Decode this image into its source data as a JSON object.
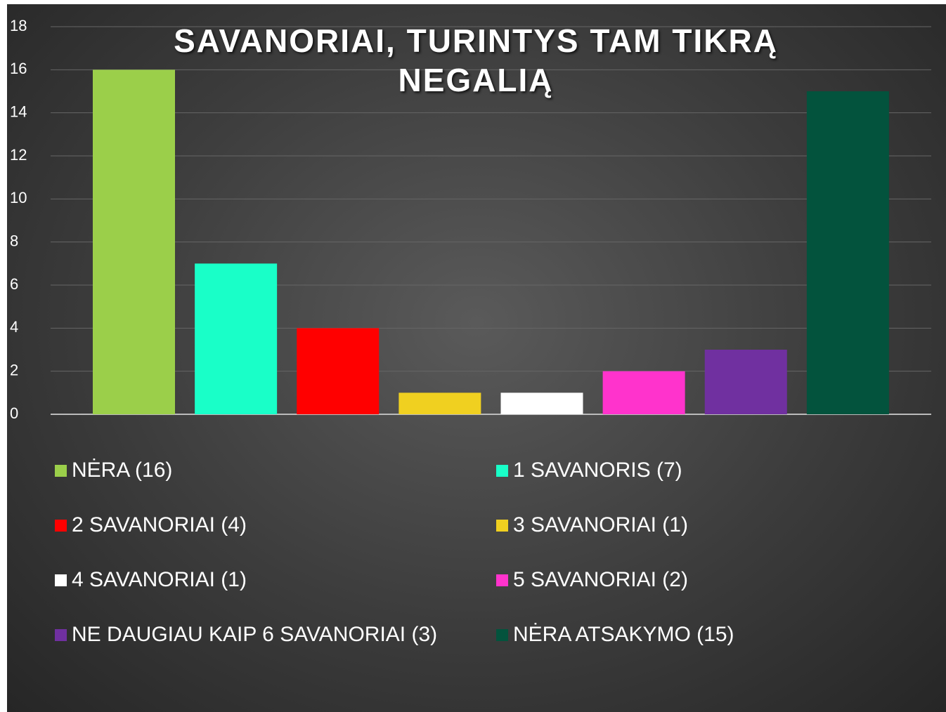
{
  "chart_data": {
    "type": "bar",
    "title": "SAVANORIAI, TURINTYS TAM TIKRĄ NEGALIĄ",
    "categories": [
      null
    ],
    "series": [
      {
        "name": "NĖRA (16)",
        "color": "#9bcf4a",
        "values": [
          16
        ]
      },
      {
        "name": "1 SAVANORIS (7)",
        "color": "#19ffc8",
        "values": [
          7
        ]
      },
      {
        "name": "2 SAVANORIAI (4)",
        "color": "#ff0000",
        "values": [
          4
        ]
      },
      {
        "name": "3 SAVANORIAI (1)",
        "color": "#f0d020",
        "values": [
          1
        ]
      },
      {
        "name": "4 SAVANORIAI (1)",
        "color": "#ffffff",
        "values": [
          1
        ]
      },
      {
        "name": "5 SAVANORIAI  (2)",
        "color": "#ff33cc",
        "values": [
          2
        ]
      },
      {
        "name": "NE DAUGIAU KAIP 6 SAVANORIAI (3)",
        "color": "#7030a0",
        "values": [
          3
        ]
      },
      {
        "name": "NĖRA ATSAKYMO (15)",
        "color": "#03533d",
        "values": [
          15
        ]
      }
    ],
    "ylim": [
      0,
      18
    ],
    "yticks": [
      0,
      2,
      4,
      6,
      8,
      10,
      12,
      14,
      16,
      18
    ],
    "grid": true,
    "legend": "bottom"
  }
}
